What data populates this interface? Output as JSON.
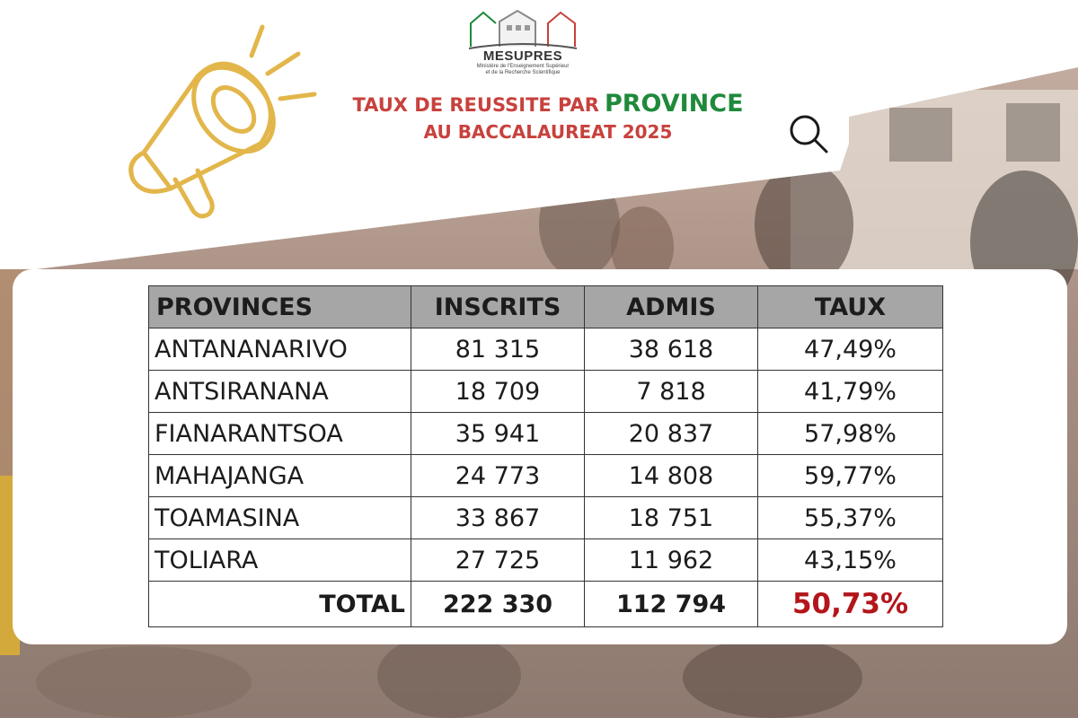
{
  "logo": {
    "name": "MESUPRES",
    "subtitle_line1": "Ministère de l'Enseignement Supérieur",
    "subtitle_line2": "et de la Recherche Scientifique"
  },
  "title": {
    "line1_part1": "TAUX DE REUSSITE PAR",
    "line1_part2": "PROVINCE",
    "line2": "AU BACCALAUREAT 2025"
  },
  "colors": {
    "title_red": "#c8413d",
    "title_green": "#1f8a3b",
    "header_gray": "#a6a6a6",
    "total_rate_red": "#b3151a",
    "megaphone_gold": "#e2b64a"
  },
  "icons": [
    "megaphone-icon",
    "search-icon"
  ],
  "table": {
    "headers": [
      "PROVINCES",
      "INSCRITS",
      "ADMIS",
      "TAUX"
    ],
    "rows": [
      {
        "province": "ANTANANARIVO",
        "inscrits": "81 315",
        "admis": "38 618",
        "taux": "47,49%"
      },
      {
        "province": "ANTSIRANANA",
        "inscrits": "18 709",
        "admis": "7 818",
        "taux": "41,79%"
      },
      {
        "province": "FIANARANTSOA",
        "inscrits": "35 941",
        "admis": "20 837",
        "taux": "57,98%"
      },
      {
        "province": "MAHAJANGA",
        "inscrits": "24 773",
        "admis": "14 808",
        "taux": "59,77%"
      },
      {
        "province": "TOAMASINA",
        "inscrits": "33 867",
        "admis": "18 751",
        "taux": "55,37%"
      },
      {
        "province": "TOLIARA",
        "inscrits": "27 725",
        "admis": "11 962",
        "taux": "43,15%"
      }
    ],
    "total": {
      "label": "TOTAL",
      "inscrits": "222 330",
      "admis": "112 794",
      "taux": "50,73%"
    }
  }
}
